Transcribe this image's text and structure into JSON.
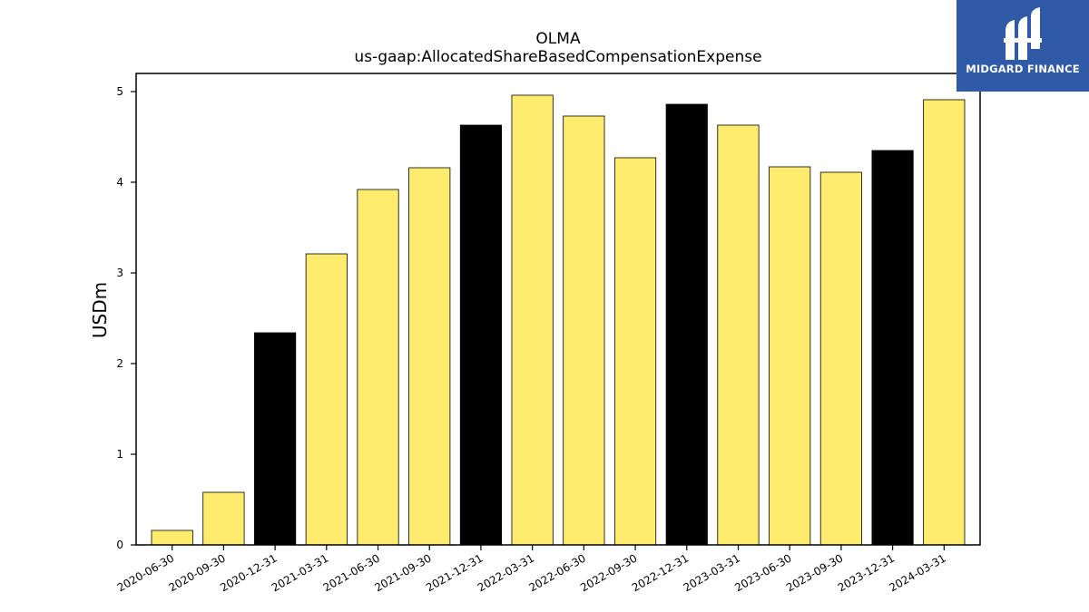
{
  "chart_data": {
    "type": "bar",
    "title": "OLMA",
    "subtitle": "us-gaap:AllocatedShareBasedCompensationExpense",
    "ylabel": "USDm",
    "xlabel": "",
    "ylim": [
      0,
      5.2
    ],
    "yticks": [
      0,
      1,
      2,
      3,
      4,
      5
    ],
    "grid": false,
    "categories": [
      "2020-06-30",
      "2020-09-30",
      "2020-12-31",
      "2021-03-31",
      "2021-06-30",
      "2021-09-30",
      "2021-12-31",
      "2022-03-31",
      "2022-06-30",
      "2022-09-30",
      "2022-12-31",
      "2023-03-31",
      "2023-06-30",
      "2023-09-30",
      "2023-12-31",
      "2024-03-31"
    ],
    "values": [
      0.16,
      0.58,
      2.34,
      3.21,
      3.92,
      4.16,
      4.63,
      4.96,
      4.73,
      4.27,
      4.86,
      4.63,
      4.17,
      4.11,
      4.35,
      4.91
    ],
    "colors": {
      "quarter": "#ffec6e",
      "year_end": "#000000",
      "edge": "#000000"
    }
  },
  "logo": {
    "text": "MIDGARD FINANCE",
    "color": "#2f5aa8"
  }
}
